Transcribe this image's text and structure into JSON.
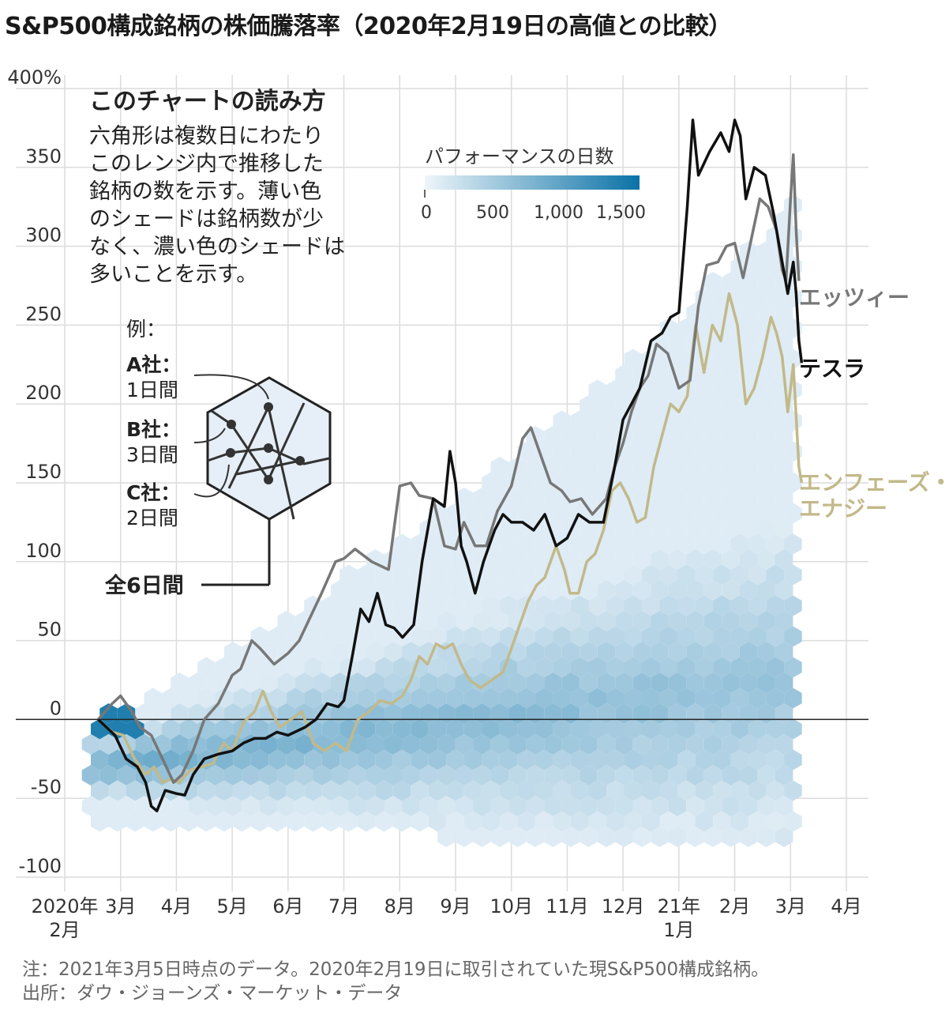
{
  "title": "S&P500構成銘柄の株価騰落率（2020年2月19日の高値との比較）",
  "chart_data": {
    "type": "line",
    "y_ticks": [
      {
        "value": 400,
        "label": "400%"
      },
      {
        "value": 350,
        "label": "350"
      },
      {
        "value": 300,
        "label": "300"
      },
      {
        "value": 250,
        "label": "250"
      },
      {
        "value": 200,
        "label": "200"
      },
      {
        "value": 150,
        "label": "150"
      },
      {
        "value": 100,
        "label": "100"
      },
      {
        "value": 50,
        "label": "50"
      },
      {
        "value": 0,
        "label": "0"
      },
      {
        "value": -50,
        "label": "-50"
      },
      {
        "value": -100,
        "label": "-100"
      }
    ],
    "ylim": [
      -100,
      400
    ],
    "x_ticks": [
      {
        "pos": 0,
        "label": "2020年",
        "sub": "2月"
      },
      {
        "pos": 1,
        "label": "3月"
      },
      {
        "pos": 2,
        "label": "4月"
      },
      {
        "pos": 3,
        "label": "5月"
      },
      {
        "pos": 4,
        "label": "6月"
      },
      {
        "pos": 5,
        "label": "7月"
      },
      {
        "pos": 6,
        "label": "8月"
      },
      {
        "pos": 7,
        "label": "9月"
      },
      {
        "pos": 8,
        "label": "10月"
      },
      {
        "pos": 9,
        "label": "11月"
      },
      {
        "pos": 10,
        "label": "12月"
      },
      {
        "pos": 11,
        "label": "21年",
        "sub": "1月"
      },
      {
        "pos": 12,
        "label": "2月"
      },
      {
        "pos": 13,
        "label": "3月"
      },
      {
        "pos": 14,
        "label": "4月"
      }
    ],
    "x_units": "months since 2020-02-01",
    "series": [
      {
        "name": "エッツィー",
        "color": "#777777",
        "points": [
          [
            0.6,
            0
          ],
          [
            0.85,
            10
          ],
          [
            1.0,
            15
          ],
          [
            1.2,
            5
          ],
          [
            1.35,
            -5
          ],
          [
            1.55,
            -10
          ],
          [
            1.75,
            -25
          ],
          [
            1.95,
            -40
          ],
          [
            2.1,
            -35
          ],
          [
            2.3,
            -20
          ],
          [
            2.5,
            0
          ],
          [
            2.75,
            10
          ],
          [
            3.0,
            28
          ],
          [
            3.15,
            32
          ],
          [
            3.35,
            50
          ],
          [
            3.5,
            45
          ],
          [
            3.75,
            35
          ],
          [
            4.0,
            42
          ],
          [
            4.2,
            50
          ],
          [
            4.4,
            65
          ],
          [
            4.6,
            80
          ],
          [
            4.85,
            100
          ],
          [
            5.0,
            102
          ],
          [
            5.2,
            108
          ],
          [
            5.5,
            100
          ],
          [
            5.8,
            95
          ],
          [
            6.0,
            148
          ],
          [
            6.2,
            150
          ],
          [
            6.35,
            142
          ],
          [
            6.6,
            140
          ],
          [
            6.8,
            110
          ],
          [
            7.0,
            108
          ],
          [
            7.15,
            125
          ],
          [
            7.35,
            110
          ],
          [
            7.55,
            110
          ],
          [
            7.75,
            132
          ],
          [
            8.0,
            148
          ],
          [
            8.2,
            178
          ],
          [
            8.35,
            185
          ],
          [
            8.5,
            170
          ],
          [
            8.7,
            150
          ],
          [
            8.9,
            145
          ],
          [
            9.05,
            138
          ],
          [
            9.25,
            140
          ],
          [
            9.45,
            130
          ],
          [
            9.7,
            140
          ],
          [
            9.85,
            160
          ],
          [
            10.0,
            175
          ],
          [
            10.15,
            195
          ],
          [
            10.3,
            210
          ],
          [
            10.45,
            218
          ],
          [
            10.6,
            238
          ],
          [
            10.8,
            232
          ],
          [
            11.0,
            210
          ],
          [
            11.2,
            215
          ],
          [
            11.35,
            262
          ],
          [
            11.5,
            288
          ],
          [
            11.7,
            290
          ],
          [
            11.85,
            300
          ],
          [
            12.0,
            302
          ],
          [
            12.15,
            280
          ],
          [
            12.3,
            305
          ],
          [
            12.45,
            330
          ],
          [
            12.6,
            325
          ],
          [
            12.75,
            310
          ],
          [
            12.85,
            285
          ],
          [
            12.92,
            278
          ],
          [
            13.0,
            330
          ],
          [
            13.05,
            358
          ],
          [
            13.1,
            310
          ],
          [
            13.15,
            278
          ]
        ]
      },
      {
        "name": "テスラ",
        "color": "#111111",
        "points": [
          [
            0.6,
            0
          ],
          [
            0.9,
            -10
          ],
          [
            1.1,
            -25
          ],
          [
            1.3,
            -30
          ],
          [
            1.45,
            -40
          ],
          [
            1.55,
            -55
          ],
          [
            1.65,
            -58
          ],
          [
            1.8,
            -45
          ],
          [
            2.0,
            -47
          ],
          [
            2.15,
            -48
          ],
          [
            2.3,
            -35
          ],
          [
            2.5,
            -25
          ],
          [
            2.75,
            -22
          ],
          [
            3.0,
            -20
          ],
          [
            3.2,
            -15
          ],
          [
            3.4,
            -12
          ],
          [
            3.6,
            -12
          ],
          [
            3.8,
            -8
          ],
          [
            4.0,
            -10
          ],
          [
            4.3,
            -5
          ],
          [
            4.5,
            0
          ],
          [
            4.7,
            10
          ],
          [
            4.9,
            8
          ],
          [
            5.0,
            12
          ],
          [
            5.15,
            40
          ],
          [
            5.3,
            70
          ],
          [
            5.45,
            62
          ],
          [
            5.6,
            80
          ],
          [
            5.75,
            60
          ],
          [
            5.9,
            58
          ],
          [
            6.05,
            52
          ],
          [
            6.25,
            60
          ],
          [
            6.4,
            100
          ],
          [
            6.6,
            140
          ],
          [
            6.8,
            135
          ],
          [
            6.9,
            170
          ],
          [
            7.0,
            150
          ],
          [
            7.1,
            110
          ],
          [
            7.2,
            100
          ],
          [
            7.35,
            80
          ],
          [
            7.5,
            100
          ],
          [
            7.7,
            120
          ],
          [
            7.85,
            130
          ],
          [
            8.0,
            125
          ],
          [
            8.2,
            125
          ],
          [
            8.4,
            120
          ],
          [
            8.6,
            130
          ],
          [
            8.8,
            110
          ],
          [
            9.0,
            115
          ],
          [
            9.2,
            130
          ],
          [
            9.4,
            125
          ],
          [
            9.65,
            125
          ],
          [
            9.85,
            160
          ],
          [
            10.0,
            190
          ],
          [
            10.15,
            200
          ],
          [
            10.3,
            210
          ],
          [
            10.5,
            240
          ],
          [
            10.7,
            245
          ],
          [
            10.85,
            255
          ],
          [
            11.0,
            258
          ],
          [
            11.15,
            325
          ],
          [
            11.25,
            380
          ],
          [
            11.35,
            345
          ],
          [
            11.55,
            360
          ],
          [
            11.75,
            372
          ],
          [
            11.9,
            360
          ],
          [
            12.0,
            380
          ],
          [
            12.1,
            370
          ],
          [
            12.2,
            330
          ],
          [
            12.35,
            350
          ],
          [
            12.55,
            345
          ],
          [
            12.7,
            320
          ],
          [
            12.85,
            290
          ],
          [
            12.95,
            270
          ],
          [
            13.05,
            290
          ],
          [
            13.1,
            270
          ],
          [
            13.15,
            240
          ],
          [
            13.2,
            226
          ]
        ]
      },
      {
        "name": "エンフェーズ・エナジー",
        "color": "#c2b98a",
        "points": [
          [
            0.6,
            0
          ],
          [
            0.85,
            -8
          ],
          [
            1.05,
            -10
          ],
          [
            1.25,
            -25
          ],
          [
            1.45,
            -35
          ],
          [
            1.6,
            -30
          ],
          [
            1.75,
            -40
          ],
          [
            1.9,
            -38
          ],
          [
            2.05,
            -40
          ],
          [
            2.25,
            -32
          ],
          [
            2.45,
            -30
          ],
          [
            2.65,
            -28
          ],
          [
            2.85,
            -15
          ],
          [
            3.0,
            -20
          ],
          [
            3.2,
            -2
          ],
          [
            3.4,
            5
          ],
          [
            3.55,
            18
          ],
          [
            3.7,
            5
          ],
          [
            3.85,
            -5
          ],
          [
            4.05,
            0
          ],
          [
            4.25,
            5
          ],
          [
            4.45,
            -15
          ],
          [
            4.65,
            -20
          ],
          [
            4.85,
            -15
          ],
          [
            5.05,
            -20
          ],
          [
            5.25,
            0
          ],
          [
            5.45,
            5
          ],
          [
            5.65,
            12
          ],
          [
            5.85,
            10
          ],
          [
            6.05,
            15
          ],
          [
            6.2,
            25
          ],
          [
            6.35,
            40
          ],
          [
            6.5,
            35
          ],
          [
            6.65,
            48
          ],
          [
            6.8,
            45
          ],
          [
            6.95,
            48
          ],
          [
            7.1,
            35
          ],
          [
            7.25,
            25
          ],
          [
            7.45,
            20
          ],
          [
            7.65,
            25
          ],
          [
            7.85,
            30
          ],
          [
            8.0,
            45
          ],
          [
            8.15,
            60
          ],
          [
            8.3,
            75
          ],
          [
            8.45,
            85
          ],
          [
            8.6,
            90
          ],
          [
            8.8,
            110
          ],
          [
            8.95,
            95
          ],
          [
            9.05,
            80
          ],
          [
            9.2,
            80
          ],
          [
            9.35,
            100
          ],
          [
            9.5,
            105
          ],
          [
            9.65,
            120
          ],
          [
            9.8,
            145
          ],
          [
            9.95,
            150
          ],
          [
            10.1,
            140
          ],
          [
            10.25,
            125
          ],
          [
            10.4,
            128
          ],
          [
            10.55,
            160
          ],
          [
            10.7,
            180
          ],
          [
            10.85,
            200
          ],
          [
            11.0,
            195
          ],
          [
            11.15,
            205
          ],
          [
            11.3,
            250
          ],
          [
            11.45,
            220
          ],
          [
            11.6,
            250
          ],
          [
            11.75,
            240
          ],
          [
            11.9,
            270
          ],
          [
            12.05,
            250
          ],
          [
            12.2,
            200
          ],
          [
            12.35,
            210
          ],
          [
            12.5,
            230
          ],
          [
            12.65,
            255
          ],
          [
            12.75,
            245
          ],
          [
            12.85,
            230
          ],
          [
            12.95,
            195
          ],
          [
            13.05,
            225
          ],
          [
            13.15,
            160
          ],
          [
            13.2,
            150
          ]
        ]
      }
    ],
    "legend": {
      "title": "パフォーマンスの日数",
      "ticks": [
        "0",
        "500",
        "1,000",
        "1,500"
      ],
      "color_low": "#e8f1f8",
      "color_high": "#0a72a6"
    },
    "howto": {
      "title": "このチャートの読み方",
      "lines": [
        "六角形は複数日にわたり",
        "このレンジ内で推移した",
        "銘柄の数を示す。薄い色",
        "のシェードは銘柄数が少",
        "なく、濃い色のシェードは",
        "多いことを示す。"
      ],
      "example_label": "例：",
      "a_name": "A社：",
      "a_days": "1日間",
      "b_name": "B社：",
      "b_days": "3日間",
      "c_name": "C社：",
      "c_days": "2日間",
      "total": "全6日間"
    },
    "labels": {
      "etsy": "エッツィー",
      "tesla": "テスラ",
      "enphase_1": "エンフェーズ・",
      "enphase_2": "エナジー"
    }
  },
  "notes": {
    "line1": "注：2021年3月5日時点のデータ。2020年2月19日に取引されていた現S&P500構成銘柄。",
    "line2": "出所：ダウ・ジョーンズ・マーケット・データ"
  }
}
